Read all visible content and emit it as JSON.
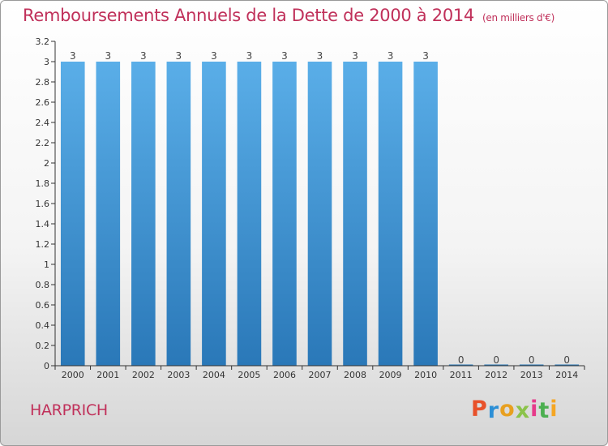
{
  "colors": {
    "title": "#c0305a",
    "bar_top": "#5aaee8",
    "bar_bottom": "#2a78b8",
    "axis": "#333333",
    "logo": [
      "#e8512a",
      "#2c8fd6",
      "#e8a020",
      "#8bc34a",
      "#e63a8a",
      "#4caf50",
      "#f5a623"
    ]
  },
  "brand": {
    "text": "Proxiti"
  },
  "footer": {
    "town": "HARPRICH"
  },
  "chart_data": {
    "type": "bar",
    "title": "Remboursements Annuels de la Dette de 2000 à 2014",
    "subtitle": "(en milliers d'€)",
    "categories": [
      "2000",
      "2001",
      "2002",
      "2003",
      "2004",
      "2005",
      "2006",
      "2007",
      "2008",
      "2009",
      "2010",
      "2011",
      "2012",
      "2013",
      "2014"
    ],
    "values": [
      3,
      3,
      3,
      3,
      3,
      3,
      3,
      3,
      3,
      3,
      3,
      0,
      0,
      0,
      0
    ],
    "data_labels": [
      "3",
      "3",
      "3",
      "3",
      "3",
      "3",
      "3",
      "3",
      "3",
      "3",
      "3",
      "0",
      "0",
      "0",
      "0"
    ],
    "ylim": [
      0,
      3.2
    ],
    "yticks": [
      {
        "value": 0,
        "label": "0"
      },
      {
        "value": 0.2,
        "label": "0.2"
      },
      {
        "value": 0.4,
        "label": "0.4"
      },
      {
        "value": 0.6,
        "label": "0.6"
      },
      {
        "value": 0.8,
        "label": "0.8"
      },
      {
        "value": 1.0,
        "label": "1"
      },
      {
        "value": 1.2,
        "label": "1.2"
      },
      {
        "value": 1.4,
        "label": "1.4"
      },
      {
        "value": 1.6,
        "label": "1.6"
      },
      {
        "value": 1.8,
        "label": "1.8"
      },
      {
        "value": 2.0,
        "label": "2"
      },
      {
        "value": 2.2,
        "label": "2.2"
      },
      {
        "value": 2.4,
        "label": "2.4"
      },
      {
        "value": 2.6,
        "label": "2.6"
      },
      {
        "value": 2.8,
        "label": "2.8"
      },
      {
        "value": 3.0,
        "label": "3"
      },
      {
        "value": 3.2,
        "label": "3.2"
      }
    ],
    "grid": false,
    "legend": "none"
  }
}
